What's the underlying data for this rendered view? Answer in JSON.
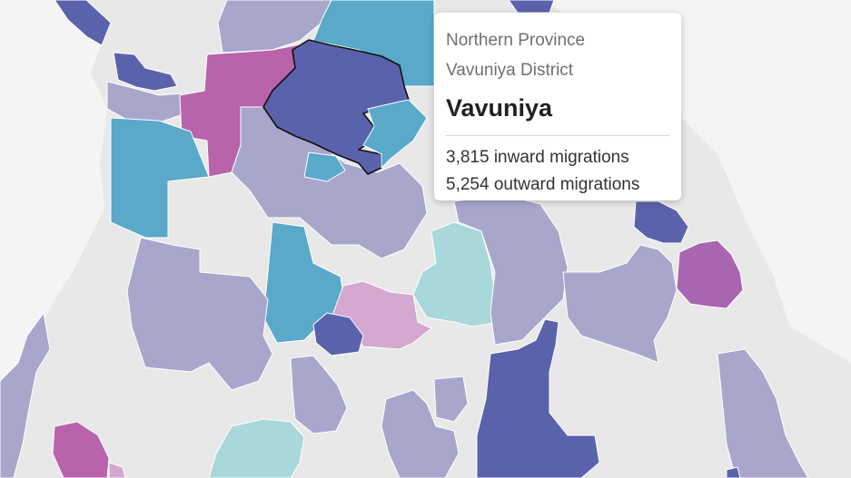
{
  "map": {
    "land_color": "#e8e8e8",
    "sea_color": "#f4f4f4",
    "legend_colors": {
      "dark_blue": "#5b62ac",
      "teal_blue": "#5aa9c8",
      "light_purple": "#a9a6cc",
      "magenta": "#b963ad",
      "purple": "#a866b0",
      "pink": "#d4a8cf",
      "light_teal": "#a8d8da"
    },
    "selected_region": "Vavuniya"
  },
  "tooltip": {
    "province": "Northern Province",
    "district": "Vavuniya District",
    "name": "Vavuniya",
    "inward_text": "3,815 inward migrations",
    "outward_text": "5,254 outward migrations",
    "inward": 3815,
    "outward": 5254
  }
}
